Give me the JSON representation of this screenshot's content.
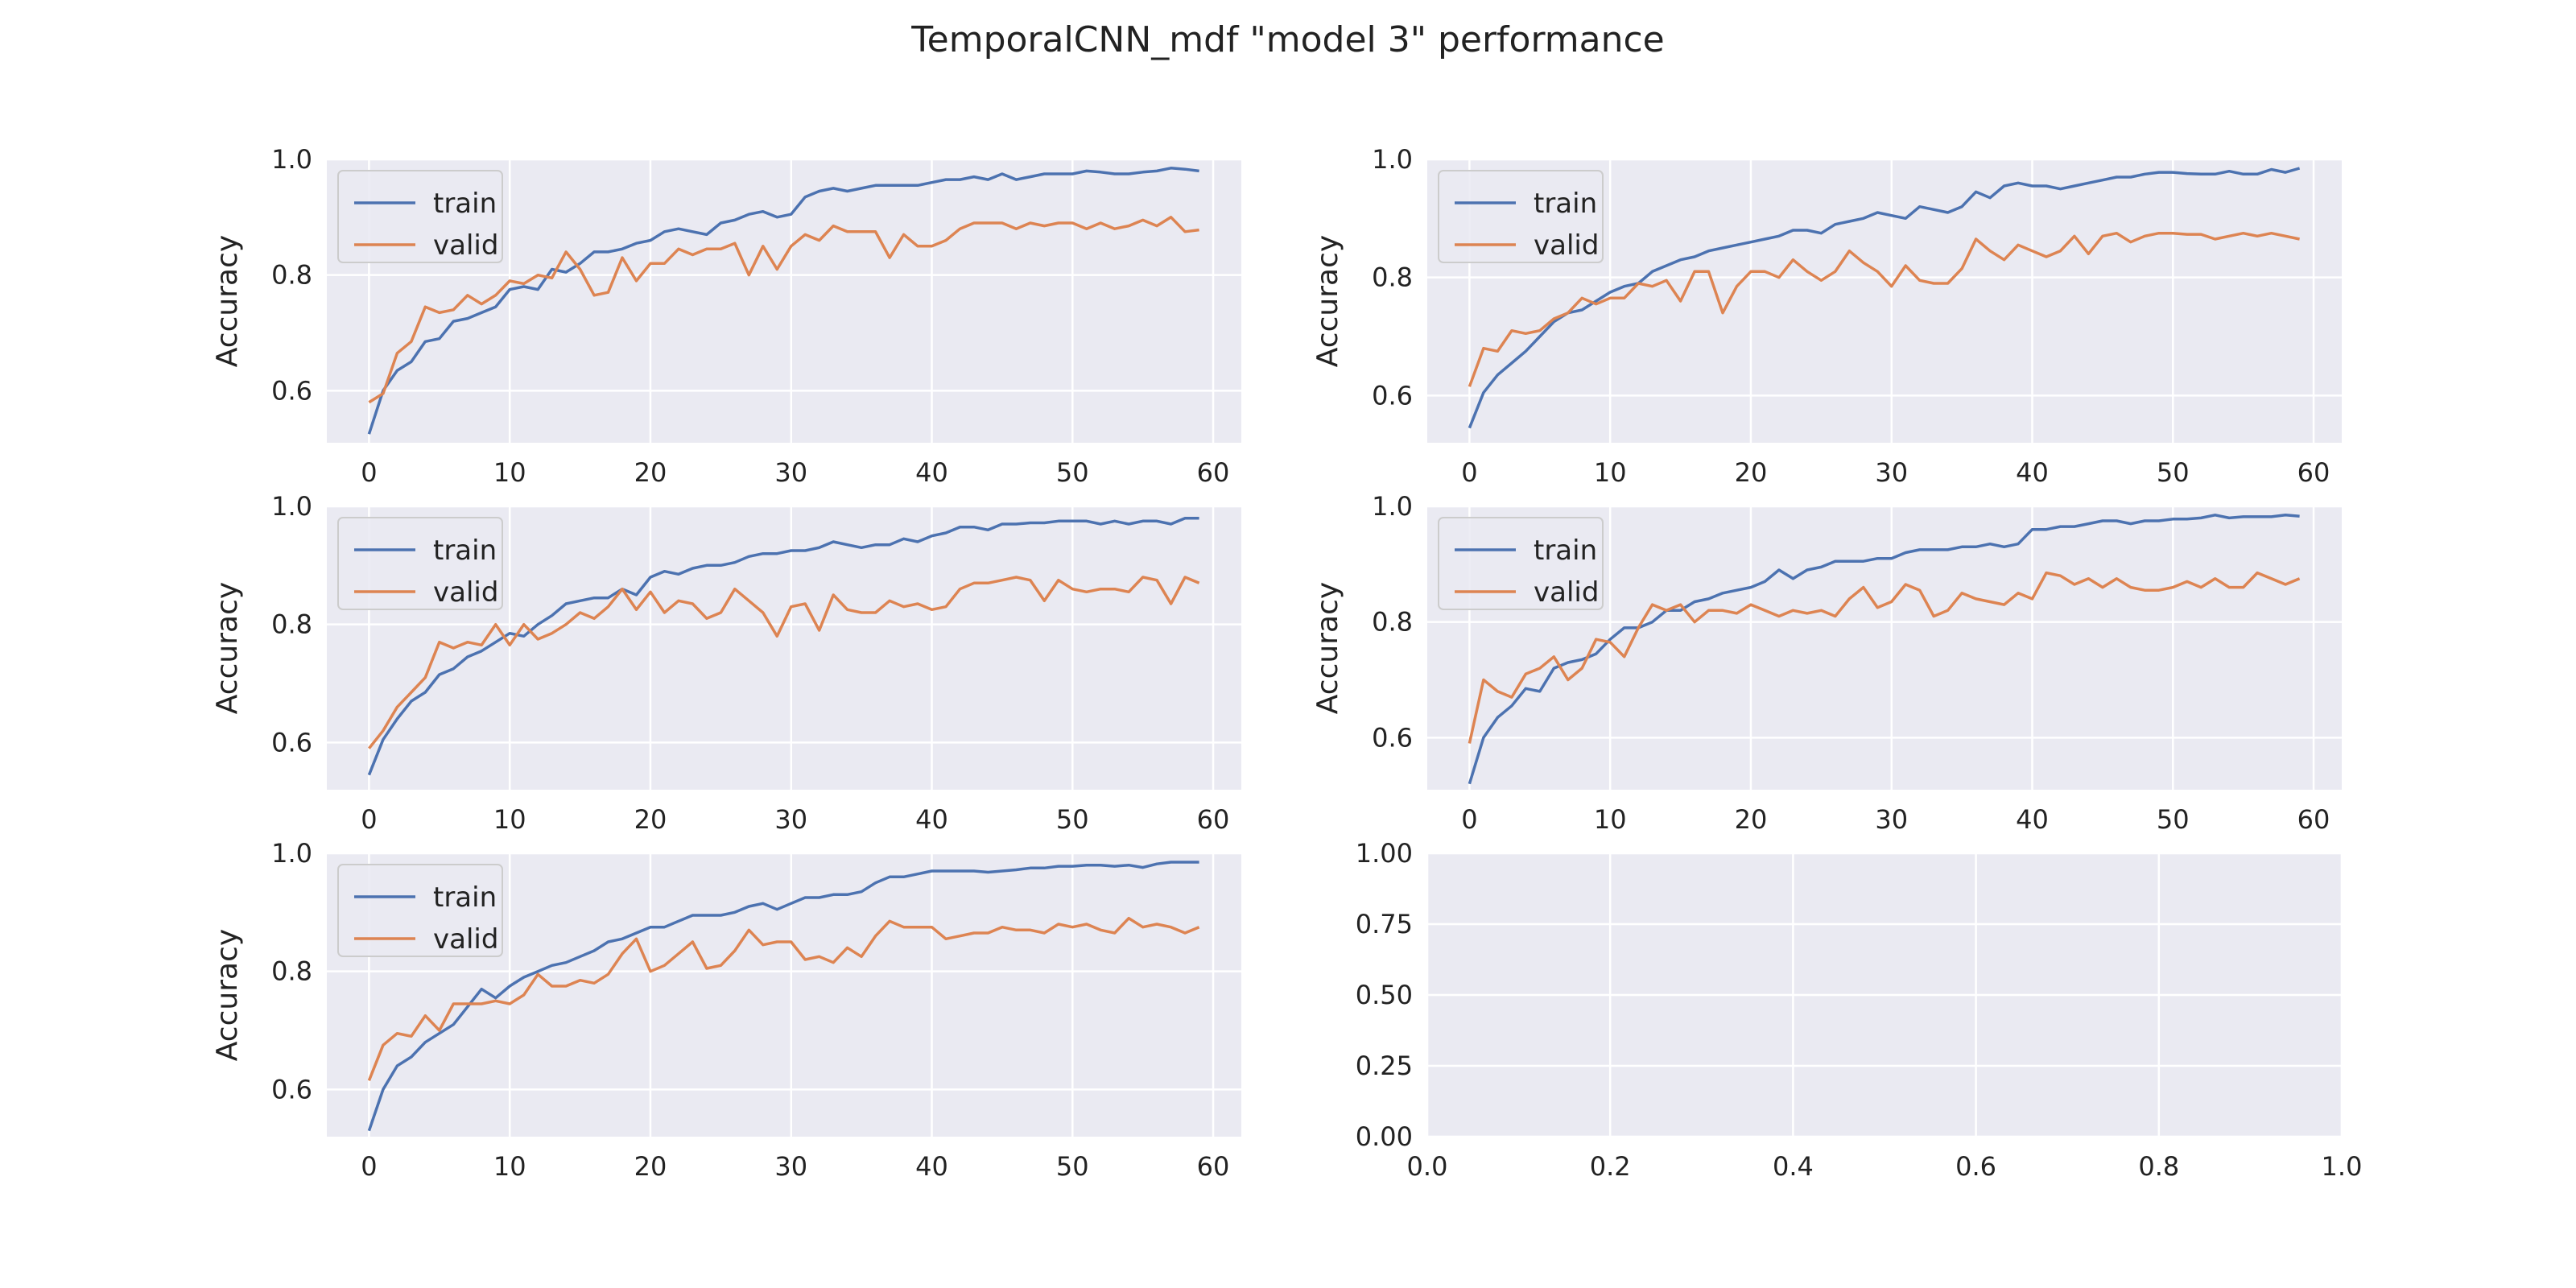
{
  "figure": {
    "title": "TemporalCNN_mdf  \"model 3\" performance",
    "background": "#ffffff",
    "panel_background": "#eaeaf2",
    "grid_color": "#ffffff",
    "colors": {
      "train": "#4c72b0",
      "valid": "#dd8452"
    }
  },
  "chart_data": [
    {
      "type": "line",
      "ylabel": "Accuracy",
      "xlim": [
        -3,
        62
      ],
      "ylim": [
        0.51,
        1.0
      ],
      "xticks": [
        0,
        10,
        20,
        30,
        40,
        50,
        60
      ],
      "yticks": [
        0.6,
        0.8,
        1.0
      ],
      "ytick_labels": [
        "0.6",
        "0.8",
        "1.0"
      ],
      "grid": true,
      "legend": "top-left",
      "series": [
        {
          "name": "train",
          "values": [
            0.525,
            0.6,
            0.635,
            0.65,
            0.685,
            0.69,
            0.72,
            0.725,
            0.735,
            0.745,
            0.775,
            0.78,
            0.775,
            0.81,
            0.805,
            0.82,
            0.84,
            0.84,
            0.845,
            0.855,
            0.86,
            0.875,
            0.88,
            0.875,
            0.87,
            0.89,
            0.895,
            0.905,
            0.91,
            0.9,
            0.905,
            0.935,
            0.945,
            0.95,
            0.945,
            0.95,
            0.955,
            0.955,
            0.955,
            0.955,
            0.96,
            0.965,
            0.965,
            0.97,
            0.965,
            0.975,
            0.965,
            0.97,
            0.975,
            0.975,
            0.975,
            0.98,
            0.978,
            0.975,
            0.975,
            0.978,
            0.98,
            0.985,
            0.983,
            0.98
          ]
        },
        {
          "name": "valid",
          "values": [
            0.58,
            0.595,
            0.665,
            0.685,
            0.745,
            0.735,
            0.74,
            0.765,
            0.75,
            0.765,
            0.79,
            0.785,
            0.8,
            0.795,
            0.84,
            0.81,
            0.765,
            0.77,
            0.83,
            0.79,
            0.82,
            0.82,
            0.845,
            0.835,
            0.845,
            0.845,
            0.855,
            0.8,
            0.85,
            0.81,
            0.85,
            0.87,
            0.86,
            0.885,
            0.875,
            0.875,
            0.875,
            0.83,
            0.87,
            0.85,
            0.85,
            0.86,
            0.88,
            0.89,
            0.89,
            0.89,
            0.88,
            0.89,
            0.885,
            0.89,
            0.89,
            0.88,
            0.89,
            0.88,
            0.885,
            0.895,
            0.885,
            0.9,
            0.875,
            0.878
          ]
        }
      ]
    },
    {
      "type": "line",
      "ylabel": "Accuracy",
      "xlim": [
        -3,
        62
      ],
      "ylim": [
        0.52,
        1.0
      ],
      "xticks": [
        0,
        10,
        20,
        30,
        40,
        50,
        60
      ],
      "yticks": [
        0.6,
        0.8,
        1.0
      ],
      "ytick_labels": [
        "0.6",
        "0.8",
        "1.0"
      ],
      "grid": true,
      "legend": "top-left",
      "series": [
        {
          "name": "train",
          "values": [
            0.545,
            0.605,
            0.635,
            0.655,
            0.675,
            0.7,
            0.725,
            0.74,
            0.745,
            0.76,
            0.775,
            0.785,
            0.79,
            0.81,
            0.82,
            0.83,
            0.835,
            0.845,
            0.85,
            0.855,
            0.86,
            0.865,
            0.87,
            0.88,
            0.88,
            0.875,
            0.89,
            0.895,
            0.9,
            0.91,
            0.905,
            0.9,
            0.92,
            0.915,
            0.91,
            0.92,
            0.945,
            0.935,
            0.955,
            0.96,
            0.955,
            0.955,
            0.95,
            0.955,
            0.96,
            0.965,
            0.97,
            0.97,
            0.975,
            0.978,
            0.978,
            0.976,
            0.975,
            0.975,
            0.98,
            0.975,
            0.975,
            0.983,
            0.978,
            0.985
          ]
        },
        {
          "name": "valid",
          "values": [
            0.615,
            0.68,
            0.675,
            0.71,
            0.705,
            0.71,
            0.73,
            0.74,
            0.765,
            0.755,
            0.765,
            0.765,
            0.79,
            0.785,
            0.795,
            0.76,
            0.81,
            0.81,
            0.74,
            0.785,
            0.81,
            0.81,
            0.8,
            0.83,
            0.81,
            0.795,
            0.81,
            0.845,
            0.825,
            0.81,
            0.785,
            0.82,
            0.795,
            0.79,
            0.79,
            0.815,
            0.865,
            0.845,
            0.83,
            0.855,
            0.845,
            0.835,
            0.845,
            0.87,
            0.84,
            0.87,
            0.875,
            0.86,
            0.87,
            0.875,
            0.875,
            0.873,
            0.873,
            0.865,
            0.87,
            0.875,
            0.87,
            0.875,
            0.87,
            0.865
          ]
        }
      ]
    },
    {
      "type": "line",
      "ylabel": "Accuracy",
      "xlim": [
        -3,
        62
      ],
      "ylim": [
        0.52,
        1.0
      ],
      "xticks": [
        0,
        10,
        20,
        30,
        40,
        50,
        60
      ],
      "yticks": [
        0.6,
        0.8,
        1.0
      ],
      "ytick_labels": [
        "0.6",
        "0.8",
        "1.0"
      ],
      "grid": true,
      "legend": "top-left",
      "series": [
        {
          "name": "train",
          "values": [
            0.545,
            0.605,
            0.64,
            0.67,
            0.685,
            0.715,
            0.725,
            0.745,
            0.755,
            0.77,
            0.785,
            0.78,
            0.8,
            0.815,
            0.835,
            0.84,
            0.845,
            0.845,
            0.86,
            0.85,
            0.88,
            0.89,
            0.885,
            0.895,
            0.9,
            0.9,
            0.905,
            0.915,
            0.92,
            0.92,
            0.925,
            0.925,
            0.93,
            0.94,
            0.935,
            0.93,
            0.935,
            0.935,
            0.945,
            0.94,
            0.95,
            0.955,
            0.965,
            0.965,
            0.96,
            0.97,
            0.97,
            0.972,
            0.972,
            0.975,
            0.975,
            0.975,
            0.97,
            0.975,
            0.97,
            0.975,
            0.975,
            0.97,
            0.98,
            0.98
          ]
        },
        {
          "name": "valid",
          "values": [
            0.59,
            0.62,
            0.66,
            0.685,
            0.71,
            0.77,
            0.76,
            0.77,
            0.765,
            0.8,
            0.765,
            0.8,
            0.775,
            0.785,
            0.8,
            0.82,
            0.81,
            0.83,
            0.86,
            0.825,
            0.855,
            0.82,
            0.84,
            0.835,
            0.81,
            0.82,
            0.86,
            0.84,
            0.82,
            0.78,
            0.83,
            0.835,
            0.79,
            0.85,
            0.825,
            0.82,
            0.82,
            0.84,
            0.83,
            0.835,
            0.825,
            0.83,
            0.86,
            0.87,
            0.87,
            0.875,
            0.88,
            0.875,
            0.84,
            0.875,
            0.86,
            0.855,
            0.86,
            0.86,
            0.855,
            0.88,
            0.875,
            0.835,
            0.88,
            0.87
          ]
        }
      ]
    },
    {
      "type": "line",
      "ylabel": "Accuracy",
      "xlim": [
        -3,
        62
      ],
      "ylim": [
        0.51,
        1.0
      ],
      "xticks": [
        0,
        10,
        20,
        30,
        40,
        50,
        60
      ],
      "yticks": [
        0.6,
        0.8,
        1.0
      ],
      "ytick_labels": [
        "0.6",
        "0.8",
        "1.0"
      ],
      "grid": true,
      "legend": "top-left",
      "series": [
        {
          "name": "train",
          "values": [
            0.52,
            0.6,
            0.635,
            0.655,
            0.685,
            0.68,
            0.72,
            0.73,
            0.735,
            0.745,
            0.77,
            0.79,
            0.79,
            0.8,
            0.82,
            0.82,
            0.835,
            0.84,
            0.85,
            0.855,
            0.86,
            0.87,
            0.89,
            0.875,
            0.89,
            0.895,
            0.905,
            0.905,
            0.905,
            0.91,
            0.91,
            0.92,
            0.925,
            0.925,
            0.925,
            0.93,
            0.93,
            0.935,
            0.93,
            0.935,
            0.96,
            0.96,
            0.965,
            0.965,
            0.97,
            0.975,
            0.975,
            0.97,
            0.975,
            0.975,
            0.978,
            0.978,
            0.98,
            0.985,
            0.98,
            0.982,
            0.982,
            0.982,
            0.985,
            0.983
          ]
        },
        {
          "name": "valid",
          "values": [
            0.59,
            0.7,
            0.68,
            0.67,
            0.71,
            0.72,
            0.74,
            0.7,
            0.72,
            0.77,
            0.765,
            0.74,
            0.79,
            0.83,
            0.82,
            0.83,
            0.8,
            0.82,
            0.82,
            0.815,
            0.83,
            0.82,
            0.81,
            0.82,
            0.815,
            0.82,
            0.81,
            0.84,
            0.86,
            0.825,
            0.835,
            0.865,
            0.855,
            0.81,
            0.82,
            0.85,
            0.84,
            0.835,
            0.83,
            0.85,
            0.84,
            0.885,
            0.88,
            0.865,
            0.875,
            0.86,
            0.875,
            0.86,
            0.855,
            0.855,
            0.86,
            0.87,
            0.86,
            0.875,
            0.86,
            0.86,
            0.885,
            0.875,
            0.865,
            0.875
          ]
        }
      ]
    },
    {
      "type": "line",
      "ylabel": "Accuracy",
      "xlim": [
        -3,
        62
      ],
      "ylim": [
        0.52,
        1.0
      ],
      "xticks": [
        0,
        10,
        20,
        30,
        40,
        50,
        60
      ],
      "yticks": [
        0.6,
        0.8,
        1.0
      ],
      "ytick_labels": [
        "0.6",
        "0.8",
        "1.0"
      ],
      "grid": true,
      "legend": "top-left",
      "series": [
        {
          "name": "train",
          "values": [
            0.53,
            0.6,
            0.64,
            0.655,
            0.68,
            0.695,
            0.71,
            0.74,
            0.77,
            0.755,
            0.775,
            0.79,
            0.8,
            0.81,
            0.815,
            0.825,
            0.835,
            0.85,
            0.855,
            0.865,
            0.875,
            0.875,
            0.885,
            0.895,
            0.895,
            0.895,
            0.9,
            0.91,
            0.915,
            0.905,
            0.915,
            0.925,
            0.925,
            0.93,
            0.93,
            0.935,
            0.95,
            0.96,
            0.96,
            0.965,
            0.97,
            0.97,
            0.97,
            0.97,
            0.968,
            0.97,
            0.972,
            0.975,
            0.975,
            0.978,
            0.978,
            0.98,
            0.98,
            0.978,
            0.98,
            0.976,
            0.982,
            0.985,
            0.985,
            0.985
          ]
        },
        {
          "name": "valid",
          "values": [
            0.615,
            0.675,
            0.695,
            0.69,
            0.725,
            0.7,
            0.745,
            0.745,
            0.745,
            0.75,
            0.745,
            0.76,
            0.795,
            0.775,
            0.775,
            0.785,
            0.78,
            0.795,
            0.83,
            0.855,
            0.8,
            0.81,
            0.83,
            0.85,
            0.805,
            0.81,
            0.835,
            0.87,
            0.845,
            0.85,
            0.85,
            0.82,
            0.825,
            0.815,
            0.84,
            0.825,
            0.86,
            0.885,
            0.875,
            0.875,
            0.875,
            0.855,
            0.86,
            0.865,
            0.865,
            0.875,
            0.87,
            0.87,
            0.865,
            0.88,
            0.875,
            0.88,
            0.87,
            0.865,
            0.89,
            0.875,
            0.88,
            0.875,
            0.865,
            0.875
          ]
        }
      ]
    },
    {
      "type": "line",
      "ylabel": "",
      "xlim": [
        0.0,
        1.0
      ],
      "ylim": [
        0.0,
        1.0
      ],
      "xticks": [
        0.0,
        0.2,
        0.4,
        0.6,
        0.8,
        1.0
      ],
      "xtick_labels": [
        "0.0",
        "0.2",
        "0.4",
        "0.6",
        "0.8",
        "1.0"
      ],
      "yticks": [
        0.0,
        0.25,
        0.5,
        0.75,
        1.0
      ],
      "ytick_labels": [
        "0.00",
        "0.25",
        "0.50",
        "0.75",
        "1.00"
      ],
      "grid": true,
      "legend": "none",
      "series": []
    }
  ]
}
